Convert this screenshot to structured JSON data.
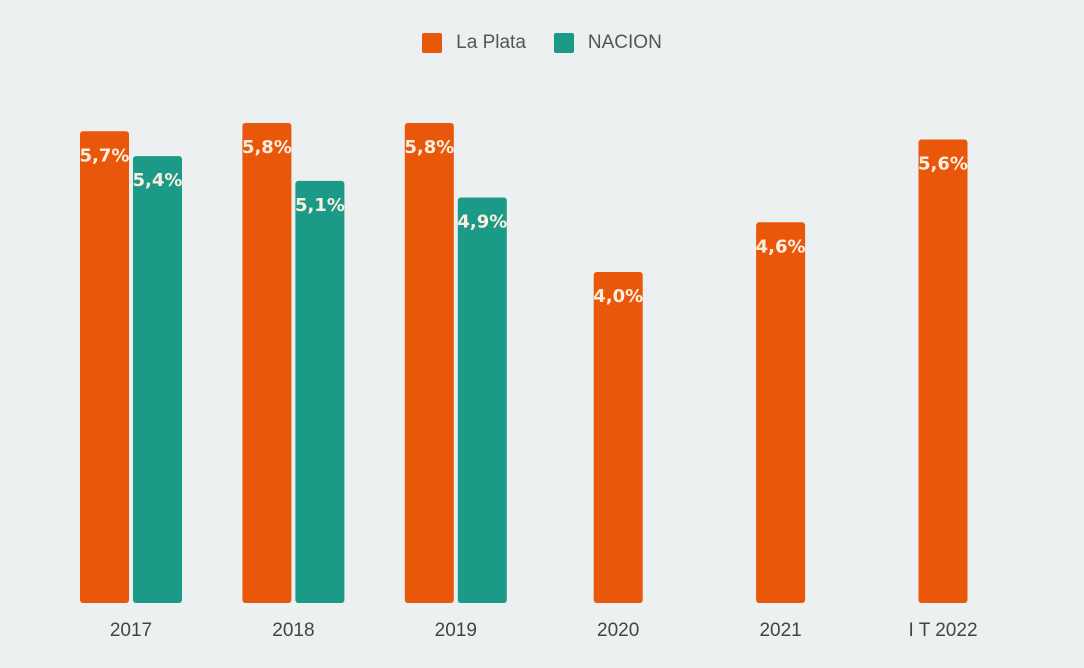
{
  "chart_data": {
    "type": "bar",
    "title": "",
    "xlabel": "",
    "ylabel": "",
    "categories": [
      "2017",
      "2018",
      "2019",
      "2020",
      "2021",
      "I T 2022"
    ],
    "series": [
      {
        "name": "La Plata",
        "color": "#e8570a",
        "values": [
          5.7,
          5.8,
          5.8,
          4.0,
          4.6,
          5.6
        ],
        "labels": [
          "5,7%",
          "5,8%",
          "5,8%",
          "4,0%",
          "4,6%",
          "5,6%"
        ]
      },
      {
        "name": "NACION",
        "color": "#1b9a87",
        "values": [
          5.4,
          5.1,
          4.9,
          null,
          null,
          null
        ],
        "labels": [
          "5,4%",
          "5,1%",
          "4,9%",
          "",
          "",
          ""
        ]
      }
    ],
    "ylim": [
      0,
      7.25
    ],
    "grid": false,
    "legend_position": "top-center",
    "data_labels": "inside-top"
  }
}
